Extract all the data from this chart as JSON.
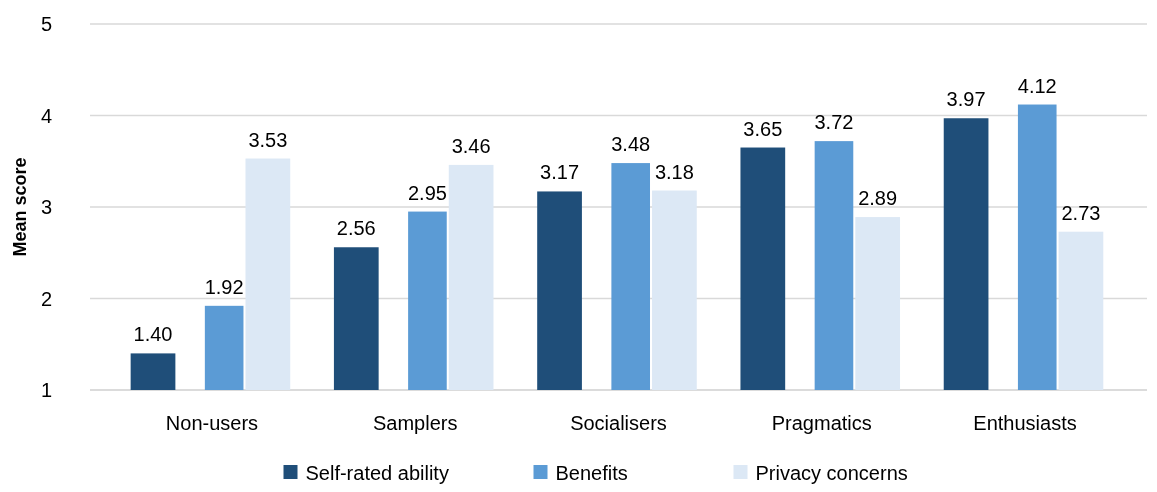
{
  "chart_data": {
    "type": "bar",
    "ylabel": "Mean score",
    "categories": [
      "Non-users",
      "Samplers",
      "Socialisers",
      "Pragmatics",
      "Enthusiasts"
    ],
    "series": [
      {
        "name": "Self-rated ability",
        "color": "#1f4e79",
        "values": [
          1.4,
          2.56,
          3.17,
          3.65,
          3.97
        ],
        "value_labels": [
          "1.40",
          "2.56",
          "3.17",
          "3.65",
          "3.97"
        ]
      },
      {
        "name": "Benefits",
        "color": "#5b9bd5",
        "values": [
          1.92,
          2.95,
          3.48,
          3.72,
          4.12
        ],
        "value_labels": [
          "1.92",
          "2.95",
          "3.48",
          "3.72",
          "4.12"
        ]
      },
      {
        "name": "Privacy concerns",
        "color": "#dce8f5",
        "values": [
          3.53,
          3.46,
          3.18,
          2.89,
          2.73
        ],
        "value_labels": [
          "3.53",
          "3.46",
          "3.18",
          "2.89",
          "2.73"
        ]
      }
    ],
    "ylim": [
      1,
      5
    ],
    "yticks": [
      1,
      2,
      3,
      4,
      5
    ],
    "grid": "y",
    "legend": "bottom"
  }
}
